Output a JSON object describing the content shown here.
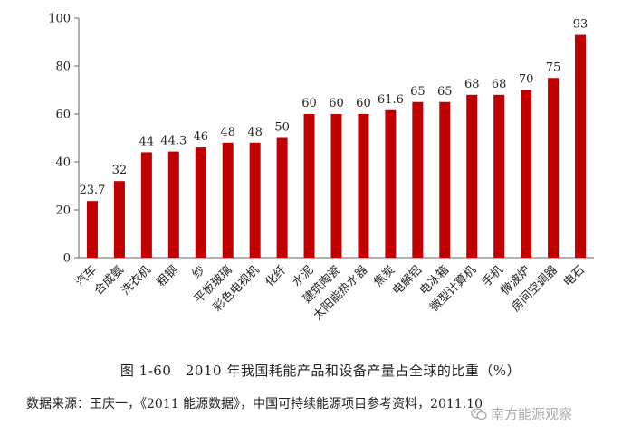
{
  "chart_data": {
    "type": "bar",
    "title": "",
    "xlabel": "",
    "ylabel": "",
    "ylim": [
      0,
      100
    ],
    "yticks": [
      0,
      20,
      40,
      60,
      80,
      100
    ],
    "grid": false,
    "bar_color": "#c00000",
    "categories": [
      "汽车",
      "合成氨",
      "洗衣机",
      "粗钢",
      "纱",
      "平板玻璃",
      "彩色电视机",
      "化纤",
      "水泥",
      "建筑陶瓷",
      "太阳能热水器",
      "焦炭",
      "电解铝",
      "电冰箱",
      "微型计算机",
      "手机",
      "微波炉",
      "房间空调器",
      "电石"
    ],
    "values": [
      23.7,
      32,
      44,
      44.3,
      46,
      48,
      48,
      50,
      60,
      60,
      60,
      61.6,
      65,
      65,
      68,
      68,
      70,
      75,
      93
    ],
    "value_labels": [
      "23.7",
      "32",
      "44",
      "44.3",
      "46",
      "48",
      "48",
      "50",
      "60",
      "60",
      "60",
      "61.6",
      "65",
      "65",
      "68",
      "68",
      "70",
      "75",
      "93"
    ]
  },
  "caption": "图 1-60　2010 年我国耗能产品和设备产量占全球的比重（%）",
  "source": "数据来源：王庆一，《2011 能源数据》，中国可持续能源项目参考资料，2011.10",
  "watermark": {
    "text": "南方能源观察",
    "icon": "wechat-icon"
  }
}
